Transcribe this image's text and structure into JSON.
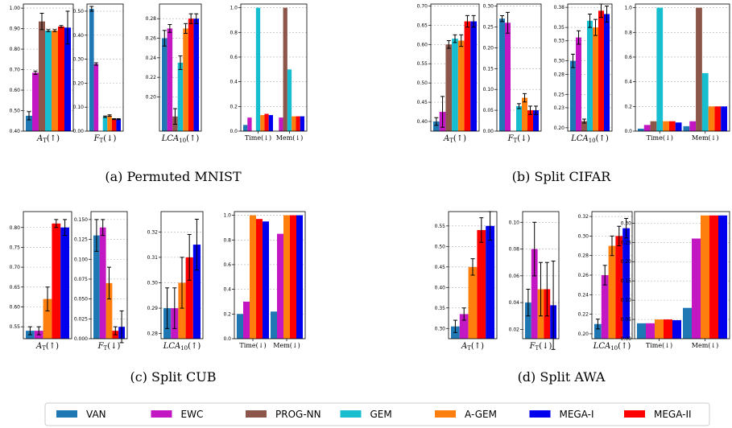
{
  "colors": {
    "VAN": "#1f77b4",
    "EWC": "#c217c2",
    "PROG-NN": "#8c564b",
    "GEM": "#17becf",
    "A-GEM": "#ff7f0e",
    "MEGA-I": "#0000ee",
    "MEGA-II": "#ff0000"
  },
  "legend": [
    "VAN",
    "EWC",
    "PROG-NN",
    "GEM",
    "A-GEM",
    "MEGA-I",
    "MEGA-II"
  ],
  "captions": [
    "(a) Permuted MNIST",
    "(b) Split CIFAR",
    "(c) Split CUB",
    "(d) Split AWA"
  ],
  "xlabels": {
    "at": "A_T(↑)",
    "ft": "F_T(↓)",
    "lca": "LCA_10(↑)",
    "time": "Time(↓)",
    "mem": "Mem(↓)"
  },
  "chart_data": [
    {
      "type": "bar",
      "panel": "a",
      "metric": "A_T",
      "ylim": [
        0.4,
        1.02
      ],
      "yticks": [
        "0.40",
        "0.50",
        "0.60",
        "0.70",
        "0.80",
        "0.90",
        "1.00"
      ],
      "series": [
        {
          "name": "VAN",
          "value": 0.475,
          "err": 0.02
        },
        {
          "name": "EWC",
          "value": 0.685,
          "err": 0.008
        },
        {
          "name": "PROG-NN",
          "value": 0.935,
          "err": 0.04
        },
        {
          "name": "GEM",
          "value": 0.89,
          "err": 0.005
        },
        {
          "name": "A-GEM",
          "value": 0.89,
          "err": 0.005
        },
        {
          "name": "MEGA-II",
          "value": 0.91,
          "err": 0.005
        },
        {
          "name": "MEGA-I",
          "value": 0.905,
          "err": 0.08
        }
      ]
    },
    {
      "type": "bar",
      "panel": "a",
      "metric": "F_T",
      "ylim": [
        0.0,
        0.53
      ],
      "yticks": [
        "0.00",
        "0.10",
        "0.20",
        "0.30",
        "0.40",
        "0.50"
      ],
      "series": [
        {
          "name": "VAN",
          "value": 0.51,
          "err": 0.01
        },
        {
          "name": "EWC",
          "value": 0.28,
          "err": 0.005
        },
        {
          "name": "PROG-NN",
          "value": 0.0,
          "err": 0.0
        },
        {
          "name": "GEM",
          "value": 0.06,
          "err": 0.003
        },
        {
          "name": "A-GEM",
          "value": 0.065,
          "err": 0.003
        },
        {
          "name": "MEGA-II",
          "value": 0.05,
          "err": 0.002
        },
        {
          "name": "MEGA-I",
          "value": 0.05,
          "err": 0.002
        }
      ]
    },
    {
      "type": "bar",
      "panel": "a",
      "metric": "LCA_10",
      "ylim": [
        0.165,
        0.295
      ],
      "yticks": [
        "0.20",
        "0.22",
        "0.24",
        "0.26",
        "0.28"
      ],
      "series": [
        {
          "name": "VAN",
          "value": 0.26,
          "err": 0.008
        },
        {
          "name": "EWC",
          "value": 0.27,
          "err": 0.004
        },
        {
          "name": "PROG-NN",
          "value": 0.18,
          "err": 0.008
        },
        {
          "name": "GEM",
          "value": 0.235,
          "err": 0.007
        },
        {
          "name": "A-GEM",
          "value": 0.27,
          "err": 0.005
        },
        {
          "name": "MEGA-II",
          "value": 0.28,
          "err": 0.005
        },
        {
          "name": "MEGA-I",
          "value": 0.28,
          "err": 0.005
        }
      ]
    },
    {
      "type": "bar",
      "panel": "a",
      "metric": "Time/Mem",
      "ylim": [
        0.0,
        1.03
      ],
      "yticks": [
        "0.0",
        "0.2",
        "0.4",
        "0.6",
        "0.8",
        "1.0"
      ],
      "time": {
        "VAN": 0.05,
        "EWC": 0.11,
        "PROG-NN": 0.0,
        "GEM": 1.0,
        "A-GEM": 0.13,
        "MEGA-II": 0.14,
        "MEGA-I": 0.13
      },
      "mem": {
        "VAN": 0.0,
        "EWC": 0.11,
        "PROG-NN": 1.0,
        "GEM": 0.5,
        "A-GEM": 0.12,
        "MEGA-II": 0.12,
        "MEGA-I": 0.12
      }
    },
    {
      "type": "bar",
      "panel": "b",
      "metric": "A_T",
      "ylim": [
        0.375,
        0.705
      ],
      "yticks": [
        "0.40",
        "0.45",
        "0.50",
        "0.55",
        "0.60",
        "0.65",
        "0.70"
      ],
      "series": [
        {
          "name": "VAN",
          "value": 0.4,
          "err": 0.01
        },
        {
          "name": "EWC",
          "value": 0.425,
          "err": 0.04
        },
        {
          "name": "PROG-NN",
          "value": 0.6,
          "err": 0.01
        },
        {
          "name": "GEM",
          "value": 0.615,
          "err": 0.01
        },
        {
          "name": "A-GEM",
          "value": 0.61,
          "err": 0.015
        },
        {
          "name": "MEGA-II",
          "value": 0.66,
          "err": 0.015
        },
        {
          "name": "MEGA-I",
          "value": 0.66,
          "err": 0.015
        }
      ]
    },
    {
      "type": "bar",
      "panel": "b",
      "metric": "F_T",
      "ylim": [
        0.0,
        0.305
      ],
      "yticks": [
        "0.00",
        "0.05",
        "0.10",
        "0.15",
        "0.20",
        "0.25",
        "0.30"
      ],
      "series": [
        {
          "name": "VAN",
          "value": 0.27,
          "err": 0.007
        },
        {
          "name": "EWC",
          "value": 0.26,
          "err": 0.025
        },
        {
          "name": "PROG-NN",
          "value": 0.0,
          "err": 0.0
        },
        {
          "name": "GEM",
          "value": 0.06,
          "err": 0.006
        },
        {
          "name": "A-GEM",
          "value": 0.08,
          "err": 0.01
        },
        {
          "name": "MEGA-II",
          "value": 0.05,
          "err": 0.01
        },
        {
          "name": "MEGA-I",
          "value": 0.05,
          "err": 0.01
        }
      ]
    },
    {
      "type": "bar",
      "panel": "b",
      "metric": "LCA_10",
      "ylim": [
        0.195,
        0.385
      ],
      "yticks": [
        "0.20",
        "0.23",
        "0.25",
        "0.28",
        "0.30",
        "0.33",
        "0.35",
        "0.38"
      ],
      "series": [
        {
          "name": "VAN",
          "value": 0.3,
          "err": 0.01
        },
        {
          "name": "EWC",
          "value": 0.335,
          "err": 0.01
        },
        {
          "name": "PROG-NN",
          "value": 0.21,
          "err": 0.003
        },
        {
          "name": "GEM",
          "value": 0.36,
          "err": 0.01
        },
        {
          "name": "A-GEM",
          "value": 0.35,
          "err": 0.012
        },
        {
          "name": "MEGA-II",
          "value": 0.375,
          "err": 0.01
        },
        {
          "name": "MEGA-I",
          "value": 0.37,
          "err": 0.012
        }
      ]
    },
    {
      "type": "bar",
      "panel": "b",
      "metric": "Time/Mem",
      "ylim": [
        0.0,
        1.03
      ],
      "yticks": [
        "0.0",
        "0.2",
        "0.4",
        "0.6",
        "0.8",
        "1.0"
      ],
      "time": {
        "VAN": 0.02,
        "EWC": 0.05,
        "PROG-NN": 0.08,
        "GEM": 1.0,
        "A-GEM": 0.08,
        "MEGA-II": 0.08,
        "MEGA-I": 0.07
      },
      "mem": {
        "VAN": 0.04,
        "EWC": 0.08,
        "PROG-NN": 1.0,
        "GEM": 0.47,
        "A-GEM": 0.2,
        "MEGA-II": 0.2,
        "MEGA-I": 0.2
      }
    },
    {
      "type": "bar",
      "panel": "c",
      "metric": "A_T",
      "ylim": [
        0.52,
        0.84
      ],
      "yticks": [
        "0.55",
        "0.60",
        "0.65",
        "0.70",
        "0.75",
        "0.80"
      ],
      "series": [
        {
          "name": "VAN",
          "value": 0.54,
          "err": 0.01
        },
        {
          "name": "EWC",
          "value": 0.54,
          "err": 0.01
        },
        {
          "name": "A-GEM",
          "value": 0.62,
          "err": 0.03
        },
        {
          "name": "MEGA-II",
          "value": 0.81,
          "err": 0.01
        },
        {
          "name": "MEGA-I",
          "value": 0.8,
          "err": 0.02
        }
      ]
    },
    {
      "type": "bar",
      "panel": "c",
      "metric": "F_T",
      "ylim": [
        0.0,
        0.16
      ],
      "yticks": [
        "0.000",
        "0.025",
        "0.050",
        "0.075",
        "0.100",
        "0.125",
        "0.150"
      ],
      "series": [
        {
          "name": "VAN",
          "value": 0.13,
          "err": 0.02
        },
        {
          "name": "EWC",
          "value": 0.14,
          "err": 0.01
        },
        {
          "name": "A-GEM",
          "value": 0.07,
          "err": 0.02
        },
        {
          "name": "MEGA-II",
          "value": 0.01,
          "err": 0.005
        },
        {
          "name": "MEGA-I",
          "value": 0.015,
          "err": 0.02
        }
      ]
    },
    {
      "type": "bar",
      "panel": "c",
      "metric": "LCA_10",
      "ylim": [
        0.278,
        0.328
      ],
      "yticks": [
        "0.28",
        "0.29",
        "0.30",
        "0.31",
        "0.32"
      ],
      "series": [
        {
          "name": "VAN",
          "value": 0.29,
          "err": 0.008
        },
        {
          "name": "EWC",
          "value": 0.29,
          "err": 0.008
        },
        {
          "name": "A-GEM",
          "value": 0.3,
          "err": 0.01
        },
        {
          "name": "MEGA-II",
          "value": 0.31,
          "err": 0.009
        },
        {
          "name": "MEGA-I",
          "value": 0.315,
          "err": 0.01
        }
      ]
    },
    {
      "type": "bar",
      "panel": "c",
      "metric": "Time/Mem",
      "ylim": [
        0.0,
        1.03
      ],
      "yticks": [
        "0.0",
        "0.2",
        "0.4",
        "0.6",
        "0.8",
        "1.0"
      ],
      "time": {
        "VAN": 0.2,
        "EWC": 0.3,
        "A-GEM": 1.0,
        "MEGA-II": 0.97,
        "MEGA-I": 0.95
      },
      "mem": {
        "VAN": 0.22,
        "EWC": 0.85,
        "A-GEM": 1.0,
        "MEGA-II": 1.0,
        "MEGA-I": 1.0
      }
    },
    {
      "type": "bar",
      "panel": "d",
      "metric": "A_T",
      "ylim": [
        0.275,
        0.585
      ],
      "yticks": [
        "0.30",
        "0.35",
        "0.40",
        "0.45",
        "0.50",
        "0.55"
      ],
      "series": [
        {
          "name": "VAN",
          "value": 0.305,
          "err": 0.015
        },
        {
          "name": "EWC",
          "value": 0.335,
          "err": 0.015
        },
        {
          "name": "A-GEM",
          "value": 0.45,
          "err": 0.02
        },
        {
          "name": "MEGA-II",
          "value": 0.54,
          "err": 0.03
        },
        {
          "name": "MEGA-I",
          "value": 0.55,
          "err": 0.035
        }
      ]
    },
    {
      "type": "bar",
      "panel": "d",
      "metric": "F_T",
      "ylim": [
        0.013,
        0.108
      ],
      "yticks": [
        "0.02",
        "0.04",
        "0.06",
        "0.08",
        "0.10"
      ],
      "series": [
        {
          "name": "VAN",
          "value": 0.04,
          "err": 0.01
        },
        {
          "name": "EWC",
          "value": 0.08,
          "err": 0.02
        },
        {
          "name": "A-GEM",
          "value": 0.05,
          "err": 0.02
        },
        {
          "name": "MEGA-II",
          "value": 0.05,
          "err": 0.02
        },
        {
          "name": "MEGA-I",
          "value": 0.038,
          "err": 0.033
        }
      ]
    },
    {
      "type": "bar",
      "panel": "d",
      "metric": "LCA_10",
      "ylim": [
        0.195,
        0.325
      ],
      "yticks": [
        "0.20",
        "0.22",
        "0.24",
        "0.26",
        "0.28",
        "0.30",
        "0.32"
      ],
      "series": [
        {
          "name": "VAN",
          "value": 0.21,
          "err": 0.005
        },
        {
          "name": "EWC",
          "value": 0.26,
          "err": 0.01
        },
        {
          "name": "A-GEM",
          "value": 0.29,
          "err": 0.01
        },
        {
          "name": "MEGA-II",
          "value": 0.3,
          "err": 0.01
        },
        {
          "name": "MEGA-I",
          "value": 0.308,
          "err": 0.01
        }
      ]
    },
    {
      "type": "bar",
      "panel": "d",
      "metric": "Time/Mem",
      "ylim": [
        0.0,
        0.33
      ],
      "yticks": [
        "0.00",
        "0.05",
        "0.10",
        "0.15",
        "0.20",
        "0.25",
        "0.30"
      ],
      "time": {
        "VAN": 0.04,
        "EWC": 0.04,
        "A-GEM": 0.05,
        "MEGA-II": 0.05,
        "MEGA-I": 0.048
      },
      "mem": {
        "VAN": 0.08,
        "EWC": 0.26,
        "A-GEM": 0.32,
        "MEGA-II": 0.32,
        "MEGA-I": 0.32
      }
    }
  ]
}
